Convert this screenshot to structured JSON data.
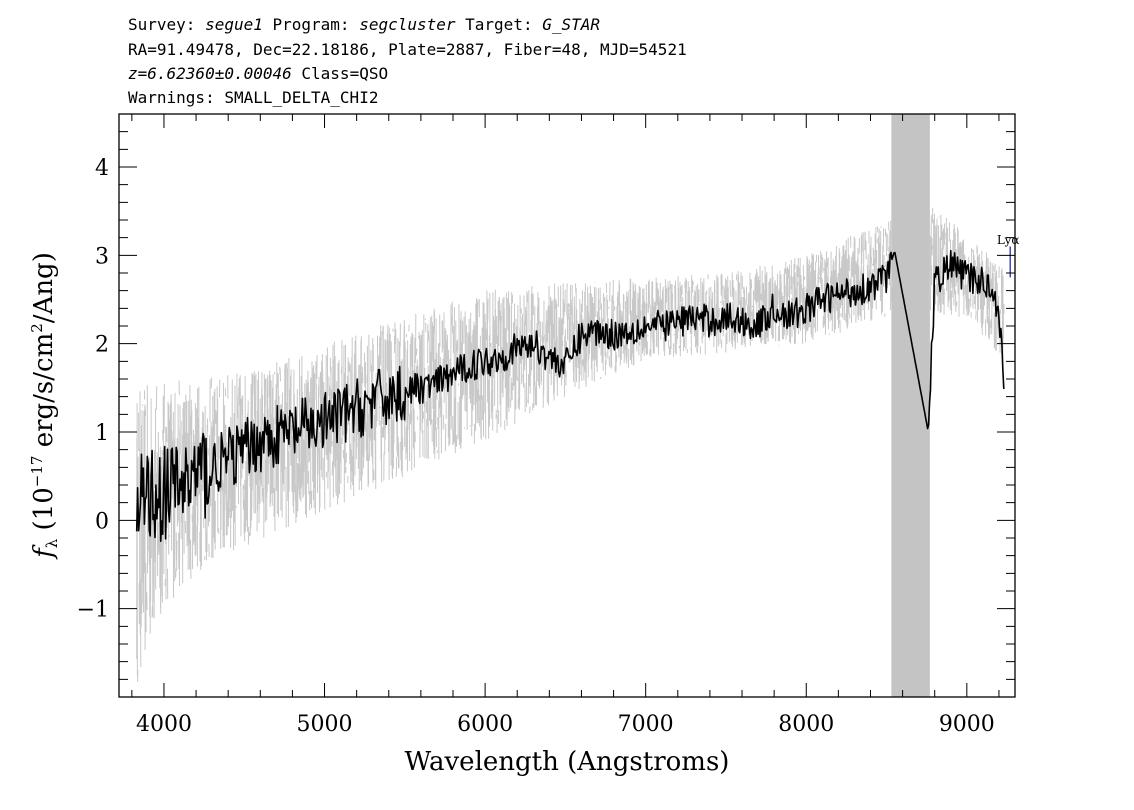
{
  "header": {
    "line1": {
      "survey_key": "Survey: ",
      "survey_val": "segue1",
      "program_key": " Program: ",
      "program_val": "segcluster",
      "target_key": " Target: ",
      "target_val": "G_STAR"
    },
    "line2": "RA=91.49478, Dec=22.18186, Plate=2887, Fiber=48, MJD=54521",
    "line3": {
      "z": "z=6.62360±0.00046",
      "cls": " Class=QSO"
    },
    "line4": "Warnings: SMALL_DELTA_CHI2"
  },
  "chart_data": {
    "type": "line",
    "xlabel": "Wavelength (Angstroms)",
    "ylabel": {
      "symbol": "f",
      "sub": "λ",
      "open": " (10",
      "exp1": "−17",
      "mid": " erg/s/cm",
      "exp2": "2",
      "close": "/Ang)"
    },
    "xlim": [
      3720,
      9300
    ],
    "ylim": [
      -2.0,
      4.6
    ],
    "xticks": [
      4000,
      5000,
      6000,
      7000,
      8000,
      9000
    ],
    "xtick_labels": [
      "4000",
      "5000",
      "6000",
      "7000",
      "8000",
      "9000"
    ],
    "yticks": [
      -1,
      0,
      1,
      2,
      3,
      4
    ],
    "ytick_labels": [
      "−1",
      "0",
      "1",
      "2",
      "3",
      "4"
    ],
    "masked_region": [
      8530,
      8770
    ],
    "line_markers": [
      {
        "label": "Lyα",
        "wavelength": 9270,
        "y": 2.95
      }
    ],
    "series": [
      {
        "role": "flux",
        "color": "#000000",
        "x": [
          3830,
          3850,
          3900,
          4000,
          4100,
          4200,
          4300,
          4400,
          4500,
          4600,
          4700,
          4800,
          4900,
          5000,
          5100,
          5200,
          5300,
          5400,
          5500,
          5600,
          5700,
          5800,
          5900,
          6000,
          6100,
          6200,
          6300,
          6400,
          6500,
          6600,
          6700,
          6800,
          6900,
          7000,
          7100,
          7200,
          7300,
          7400,
          7500,
          7600,
          7700,
          7800,
          7900,
          8000,
          8100,
          8200,
          8300,
          8400,
          8500,
          8550,
          8760,
          8800,
          8900,
          9000,
          9100,
          9150,
          9200,
          9230
        ],
        "y": [
          -0.3,
          0.2,
          0.3,
          0.3,
          0.4,
          0.5,
          0.6,
          0.7,
          0.8,
          0.9,
          0.95,
          1.0,
          1.05,
          1.1,
          1.2,
          1.25,
          1.35,
          1.4,
          1.45,
          1.5,
          1.55,
          1.65,
          1.75,
          1.8,
          1.85,
          1.95,
          2.0,
          1.85,
          1.75,
          2.1,
          2.15,
          2.1,
          2.15,
          2.2,
          2.2,
          2.25,
          2.3,
          2.25,
          2.3,
          2.25,
          2.2,
          2.4,
          2.3,
          2.4,
          2.5,
          2.55,
          2.6,
          2.65,
          2.75,
          3.05,
          1.0,
          2.7,
          2.9,
          2.75,
          2.7,
          2.65,
          2.4,
          1.5
        ]
      },
      {
        "role": "uncertainty",
        "color": "#c8c8c8",
        "x": [
          3830,
          4000,
          4200,
          4500,
          5000,
          5500,
          6000,
          6500,
          7000,
          7500,
          8000,
          8500,
          8800,
          9000,
          9230
        ],
        "y_low": [
          -1.9,
          -1.0,
          -0.6,
          -0.3,
          0.1,
          0.5,
          0.9,
          1.4,
          1.8,
          1.9,
          2.0,
          2.3,
          2.3,
          2.3,
          1.8
        ],
        "y_high": [
          1.5,
          1.6,
          1.6,
          1.7,
          2.0,
          2.3,
          2.6,
          2.7,
          2.75,
          2.8,
          3.0,
          3.4,
          3.6,
          3.2,
          2.9
        ]
      }
    ]
  }
}
